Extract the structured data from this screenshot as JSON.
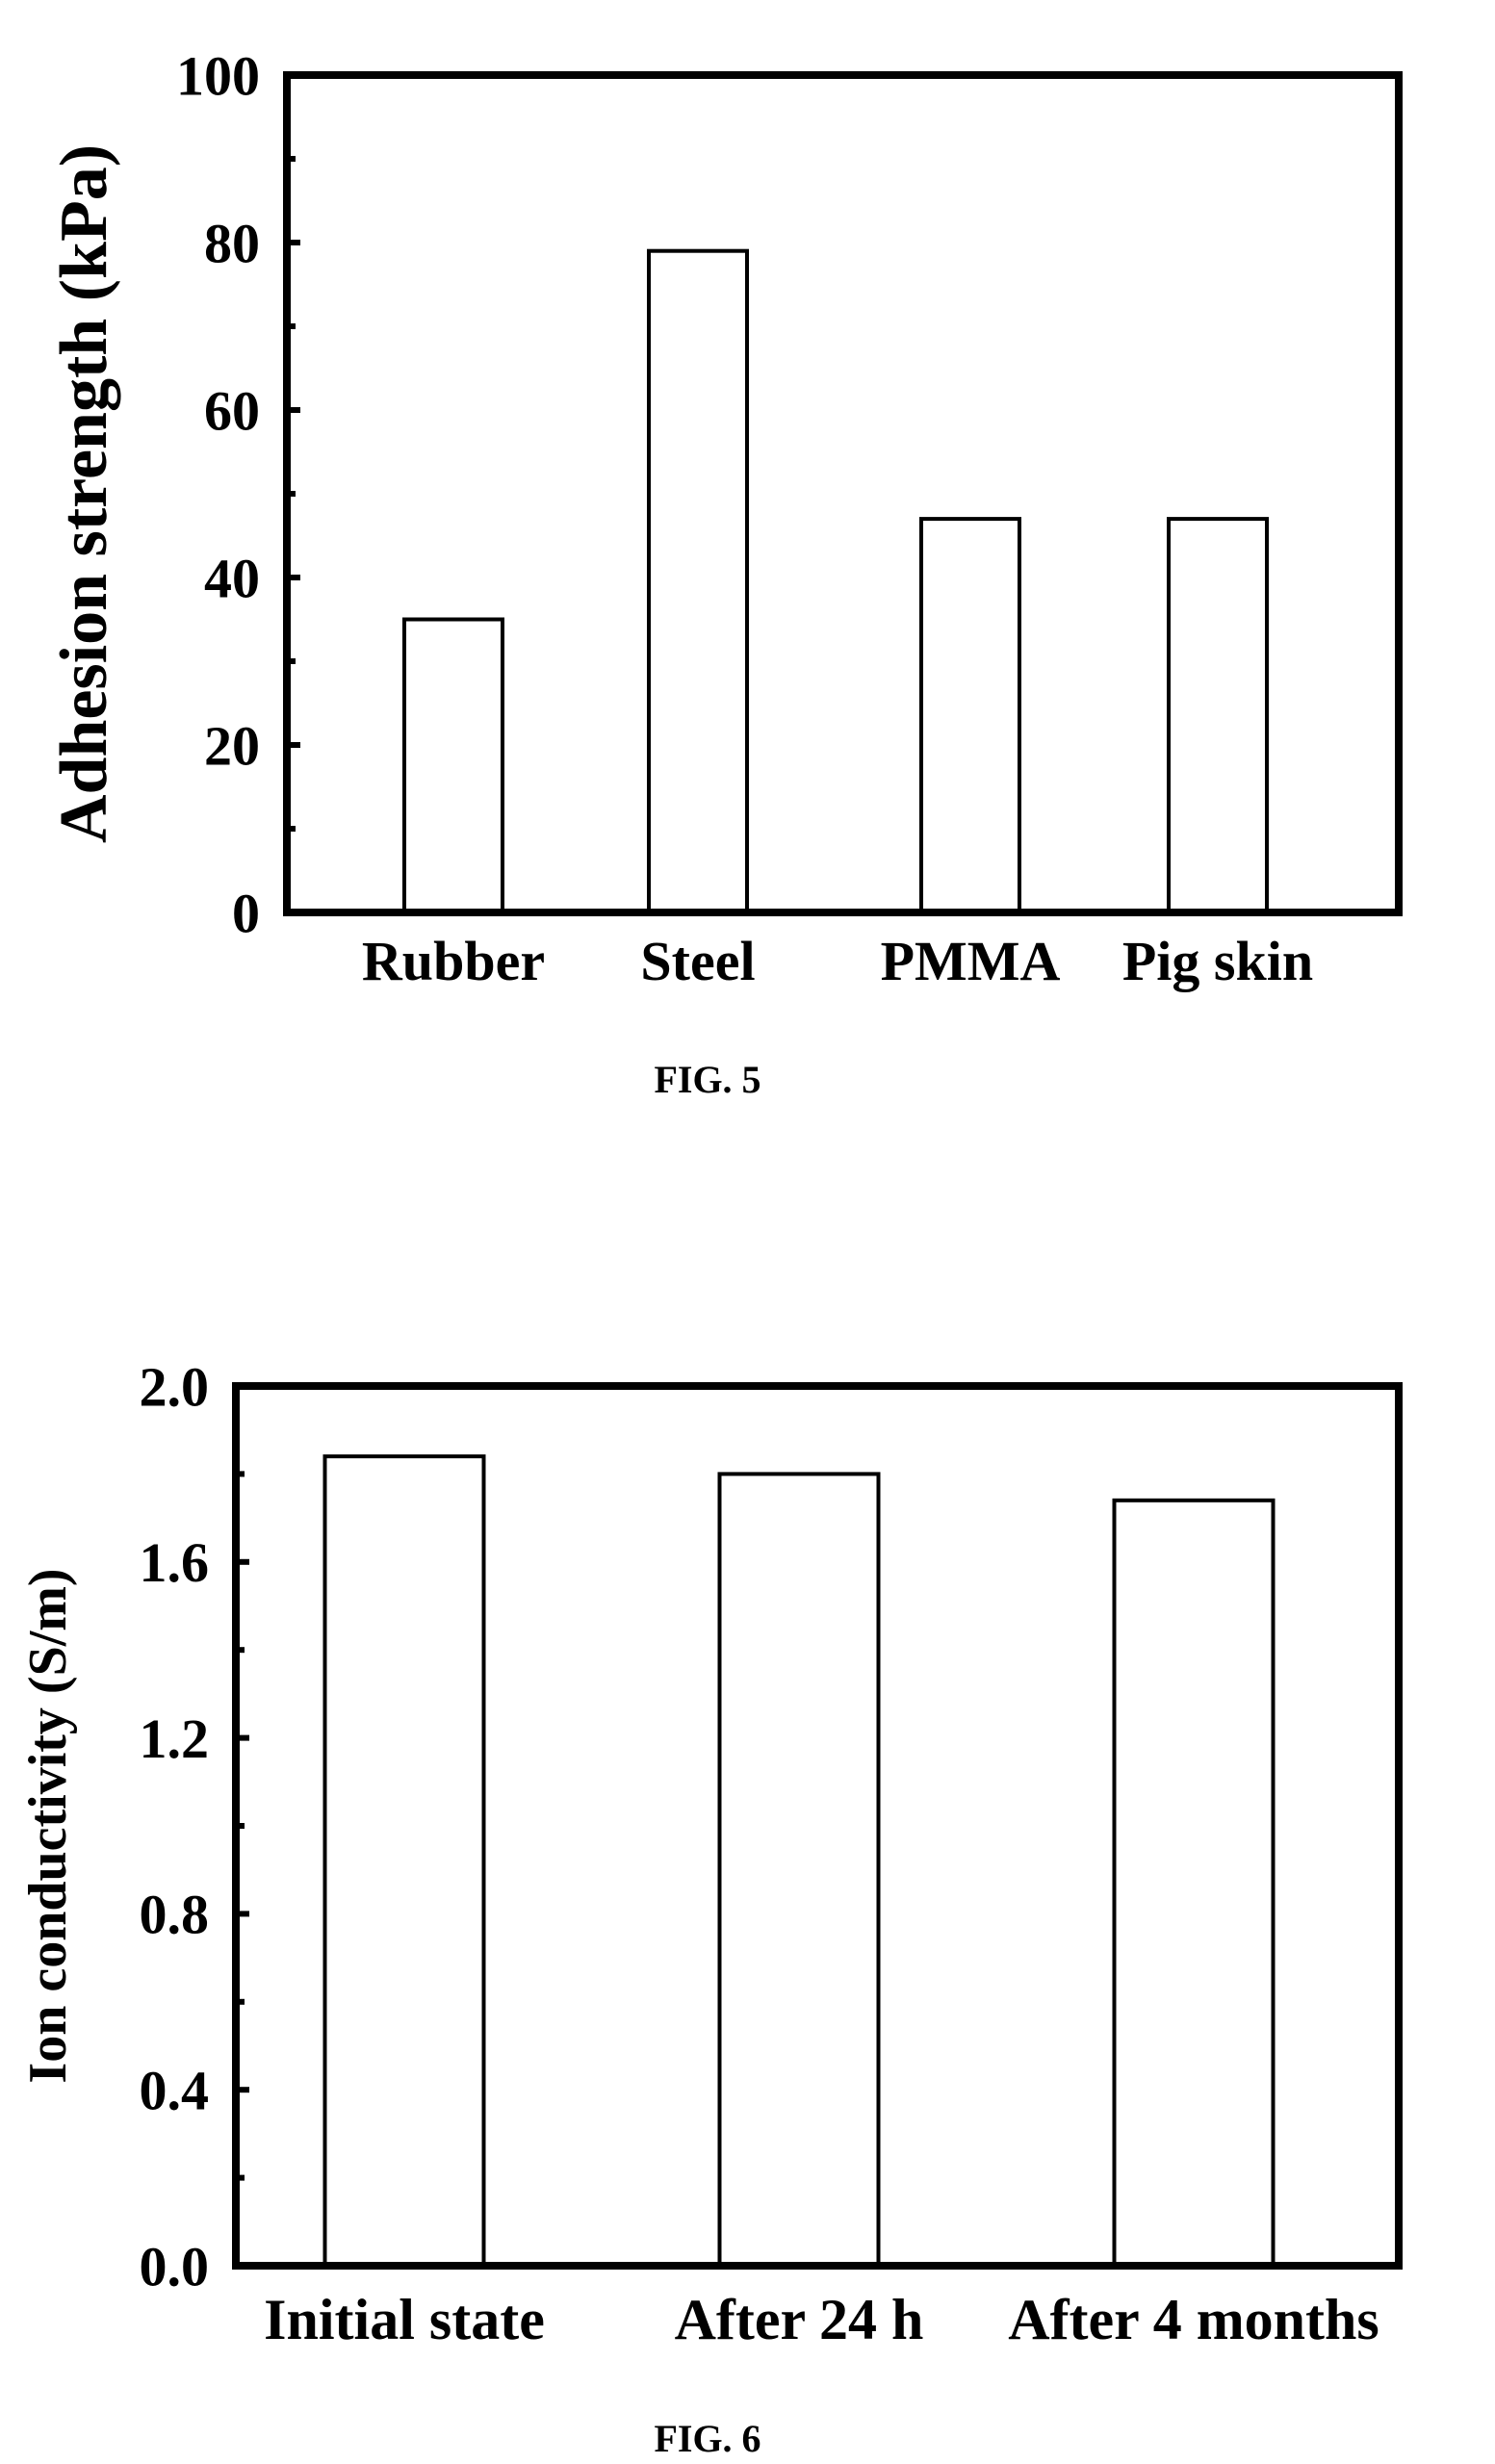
{
  "chart_data": [
    {
      "type": "bar",
      "categories": [
        "Rubber",
        "Steel",
        "PMMA",
        "Pig skin"
      ],
      "values": [
        35,
        79,
        47,
        47
      ],
      "title": "",
      "xlabel": "",
      "ylabel": "Adhesion strength (kPa)",
      "ylim": [
        0,
        100
      ],
      "yticks": [
        "0",
        "20",
        "40",
        "60",
        "80",
        "100"
      ],
      "grid": false,
      "caption": "FIG. 5"
    },
    {
      "type": "bar",
      "categories": [
        "Initial state",
        "After 24 h",
        "After 4 months"
      ],
      "values": [
        1.84,
        1.8,
        1.74
      ],
      "title": "",
      "xlabel": "",
      "ylabel": "Ion conductivity (S/m)",
      "ylim": [
        0,
        2.0
      ],
      "yticks": [
        "0.0",
        "0.4",
        "0.8",
        "1.2",
        "1.6",
        "2.0"
      ],
      "grid": false,
      "caption": "FIG. 6"
    }
  ]
}
